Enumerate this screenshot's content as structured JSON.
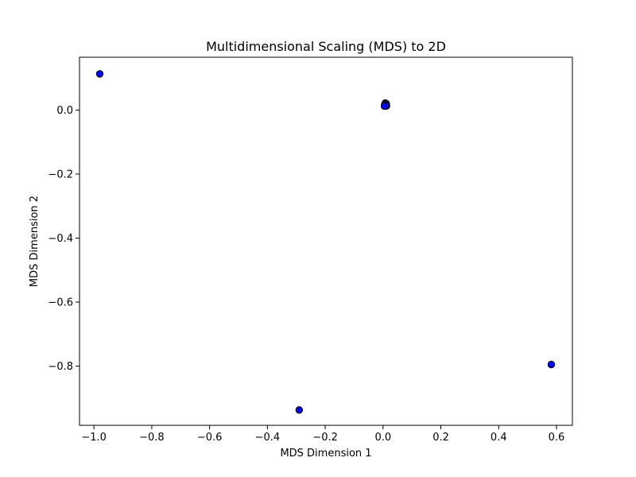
{
  "chart_data": {
    "type": "scatter",
    "title": "Multidimensional Scaling (MDS) to 2D",
    "xlabel": "MDS Dimension 1",
    "ylabel": "MDS Dimension 2",
    "xlim": [
      -1.05,
      0.655
    ],
    "ylim": [
      -0.985,
      0.165
    ],
    "xticks": [
      -1.0,
      -0.8,
      -0.6,
      -0.4,
      -0.2,
      0.0,
      0.2,
      0.4,
      0.6
    ],
    "xtick_labels": [
      "−1.0",
      "−0.8",
      "−0.6",
      "−0.4",
      "−0.2",
      "0.0",
      "0.2",
      "0.4",
      "0.6"
    ],
    "yticks": [
      0.0,
      -0.2,
      -0.4,
      -0.6,
      -0.8
    ],
    "ytick_labels": [
      "0.0",
      "−0.2",
      "−0.4",
      "−0.6",
      "−0.8"
    ],
    "grid": false,
    "marker_color": "#0000ff",
    "marker_edge_color": "#000000",
    "points": [
      {
        "x": -0.98,
        "y": 0.113
      },
      {
        "x": -0.29,
        "y": -0.937
      },
      {
        "x": 0.582,
        "y": -0.795
      },
      {
        "x": 0.008,
        "y": 0.022
      },
      {
        "x": 0.011,
        "y": 0.02
      },
      {
        "x": 0.006,
        "y": 0.018
      },
      {
        "x": 0.01,
        "y": 0.016
      },
      {
        "x": 0.007,
        "y": 0.014
      },
      {
        "x": 0.012,
        "y": 0.013
      },
      {
        "x": 0.009,
        "y": 0.015
      },
      {
        "x": 0.005,
        "y": 0.012
      }
    ]
  }
}
